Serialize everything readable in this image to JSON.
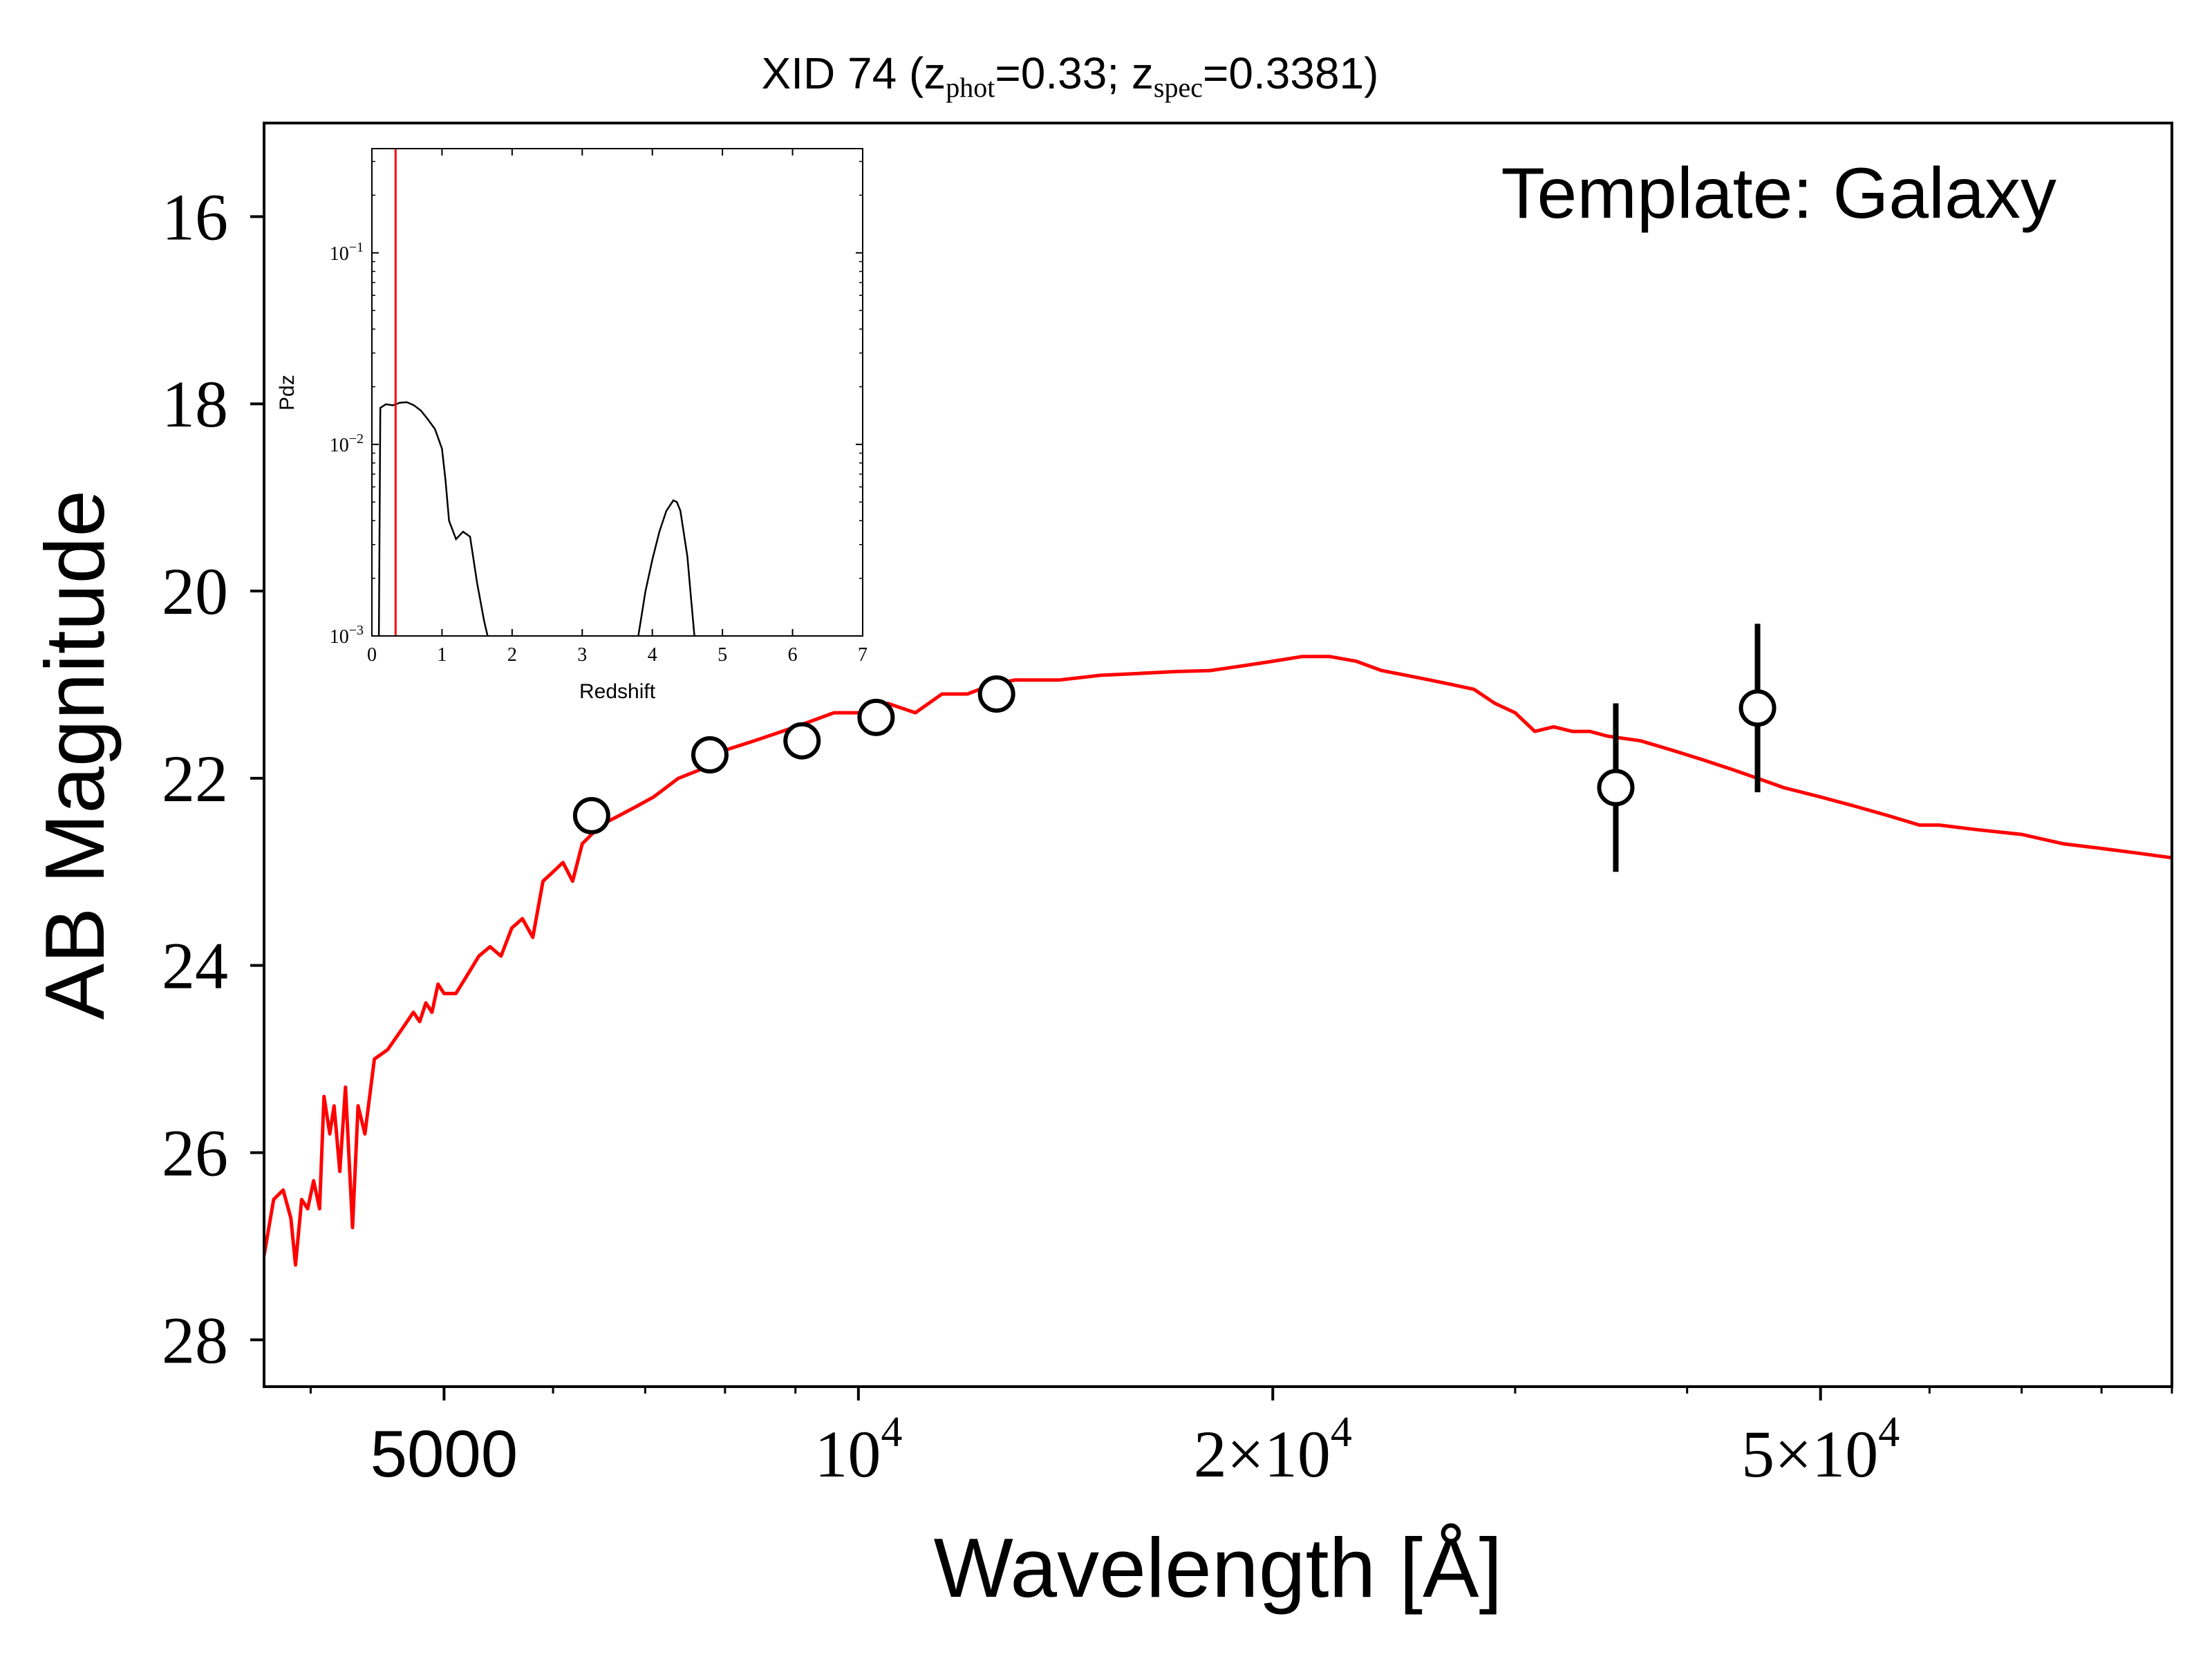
{
  "title": {
    "prefix": "XID 74 (z",
    "phot_sub": "phot",
    "mid": "=0.33; z",
    "spec_sub": "spec",
    "suffix": "=0.3381)"
  },
  "annotation": "Template: Galaxy",
  "colors": {
    "model": "#ff0000",
    "points": "#000000",
    "inset_pdz": "#000000",
    "inset_zspec": "#ff0000"
  },
  "chart_data": [
    {
      "type": "line",
      "xlabel": "Wavelength [Å]",
      "ylabel": "AB Magnitude",
      "xscale": "log",
      "yaxis_inverted": true,
      "xlim": [
        3700,
        90000
      ],
      "ylim": [
        28.5,
        15
      ],
      "grid": false,
      "legend": "none",
      "x_ticks": [
        {
          "value": 5000,
          "base": "5000"
        },
        {
          "value": 10000,
          "base": "10",
          "sup": "4"
        },
        {
          "value": 20000,
          "base": "2×10",
          "sup": "4"
        },
        {
          "value": 50000,
          "base": "5×10",
          "sup": "4"
        }
      ],
      "y_ticks": [
        16,
        18,
        20,
        22,
        24,
        26,
        28
      ],
      "series": [
        {
          "kind": "model",
          "x": [
            3700,
            3760,
            3820,
            3870,
            3900,
            3940,
            3980,
            4020,
            4060,
            4090,
            4130,
            4160,
            4200,
            4240,
            4290,
            4330,
            4380,
            4450,
            4550,
            4650,
            4700,
            4750,
            4800,
            4850,
            4900,
            4950,
            5000,
            5100,
            5200,
            5300,
            5400,
            5500,
            5600,
            5700,
            5800,
            5900,
            6000,
            6100,
            6200,
            6300,
            6500,
            6700,
            6900,
            7100,
            7400,
            7700,
            8000,
            8400,
            8800,
            9200,
            9600,
            10000,
            10500,
            11000,
            11500,
            12000,
            12500,
            13000,
            14000,
            15000,
            16000,
            17000,
            18000,
            19000,
            20000,
            21000,
            22000,
            23000,
            24000,
            25000,
            26000,
            27000,
            28000,
            29000,
            30000,
            31000,
            32000,
            33000,
            34000,
            35000,
            37000,
            39000,
            41000,
            43000,
            45000,
            47000,
            50000,
            53000,
            56000,
            59000,
            61000,
            65000,
            70000,
            75000,
            80000,
            85000,
            90000
          ],
          "y": [
            27.1,
            26.5,
            26.4,
            26.7,
            27.2,
            26.5,
            26.6,
            26.3,
            26.6,
            25.4,
            25.8,
            25.5,
            26.2,
            25.3,
            26.8,
            25.5,
            25.8,
            25.0,
            24.9,
            24.7,
            24.6,
            24.5,
            24.6,
            24.4,
            24.5,
            24.2,
            24.3,
            24.3,
            24.1,
            23.9,
            23.8,
            23.9,
            23.6,
            23.5,
            23.7,
            23.1,
            23.0,
            22.9,
            23.1,
            22.7,
            22.5,
            22.4,
            22.3,
            22.2,
            22.0,
            21.9,
            21.7,
            21.6,
            21.5,
            21.4,
            21.3,
            21.3,
            21.2,
            21.3,
            21.1,
            21.1,
            21.0,
            20.95,
            20.95,
            20.9,
            20.88,
            20.86,
            20.85,
            20.8,
            20.75,
            20.7,
            20.7,
            20.75,
            20.85,
            20.9,
            20.95,
            21.0,
            21.05,
            21.2,
            21.3,
            21.5,
            21.45,
            21.5,
            21.5,
            21.55,
            21.6,
            21.7,
            21.8,
            21.9,
            22.0,
            22.1,
            22.2,
            22.3,
            22.4,
            22.5,
            22.5,
            22.55,
            22.6,
            22.7,
            22.75,
            22.8,
            22.85
          ]
        },
        {
          "kind": "photometry",
          "x": [
            6400,
            7800,
            9100,
            10300,
            12600,
            35500,
            45000
          ],
          "y": [
            22.4,
            21.75,
            21.6,
            21.35,
            21.1,
            22.1,
            21.25
          ],
          "yerr": [
            0,
            0,
            0,
            0,
            0,
            0.9,
            0.9
          ]
        }
      ]
    },
    {
      "type": "line",
      "inset": true,
      "xlabel": "Redshift",
      "ylabel": "Pdz",
      "yscale": "log",
      "xlim": [
        0,
        7
      ],
      "ylim": [
        0.001,
        0.35
      ],
      "x_ticks": [
        0,
        1,
        2,
        3,
        4,
        5,
        6,
        7
      ],
      "y_ticks": [
        {
          "value": 0.001,
          "base": "10",
          "sup": "−3"
        },
        {
          "value": 0.01,
          "base": "10",
          "sup": "−2"
        },
        {
          "value": 0.1,
          "base": "10",
          "sup": "−1"
        }
      ],
      "z_spec_line": 0.3381,
      "series": [
        {
          "kind": "pdz",
          "x": [
            0.1,
            0.12,
            0.2,
            0.3,
            0.4,
            0.5,
            0.6,
            0.7,
            0.8,
            0.9,
            1.0,
            1.05,
            1.1,
            1.2,
            1.3,
            1.4,
            1.45,
            1.5,
            1.6,
            1.65
          ],
          "y": [
            0.001,
            0.0155,
            0.0162,
            0.016,
            0.0165,
            0.0166,
            0.016,
            0.015,
            0.0135,
            0.012,
            0.0095,
            0.0065,
            0.004,
            0.0032,
            0.0035,
            0.0033,
            0.0025,
            0.0019,
            0.0012,
            0.001
          ]
        },
        {
          "kind": "pdz",
          "x": [
            3.8,
            3.85,
            3.9,
            4.0,
            4.1,
            4.2,
            4.3,
            4.35,
            4.4,
            4.5,
            4.55,
            4.6
          ],
          "y": [
            0.001,
            0.0013,
            0.0017,
            0.0025,
            0.0035,
            0.0045,
            0.0051,
            0.005,
            0.0045,
            0.0026,
            0.0016,
            0.001
          ]
        }
      ]
    }
  ]
}
